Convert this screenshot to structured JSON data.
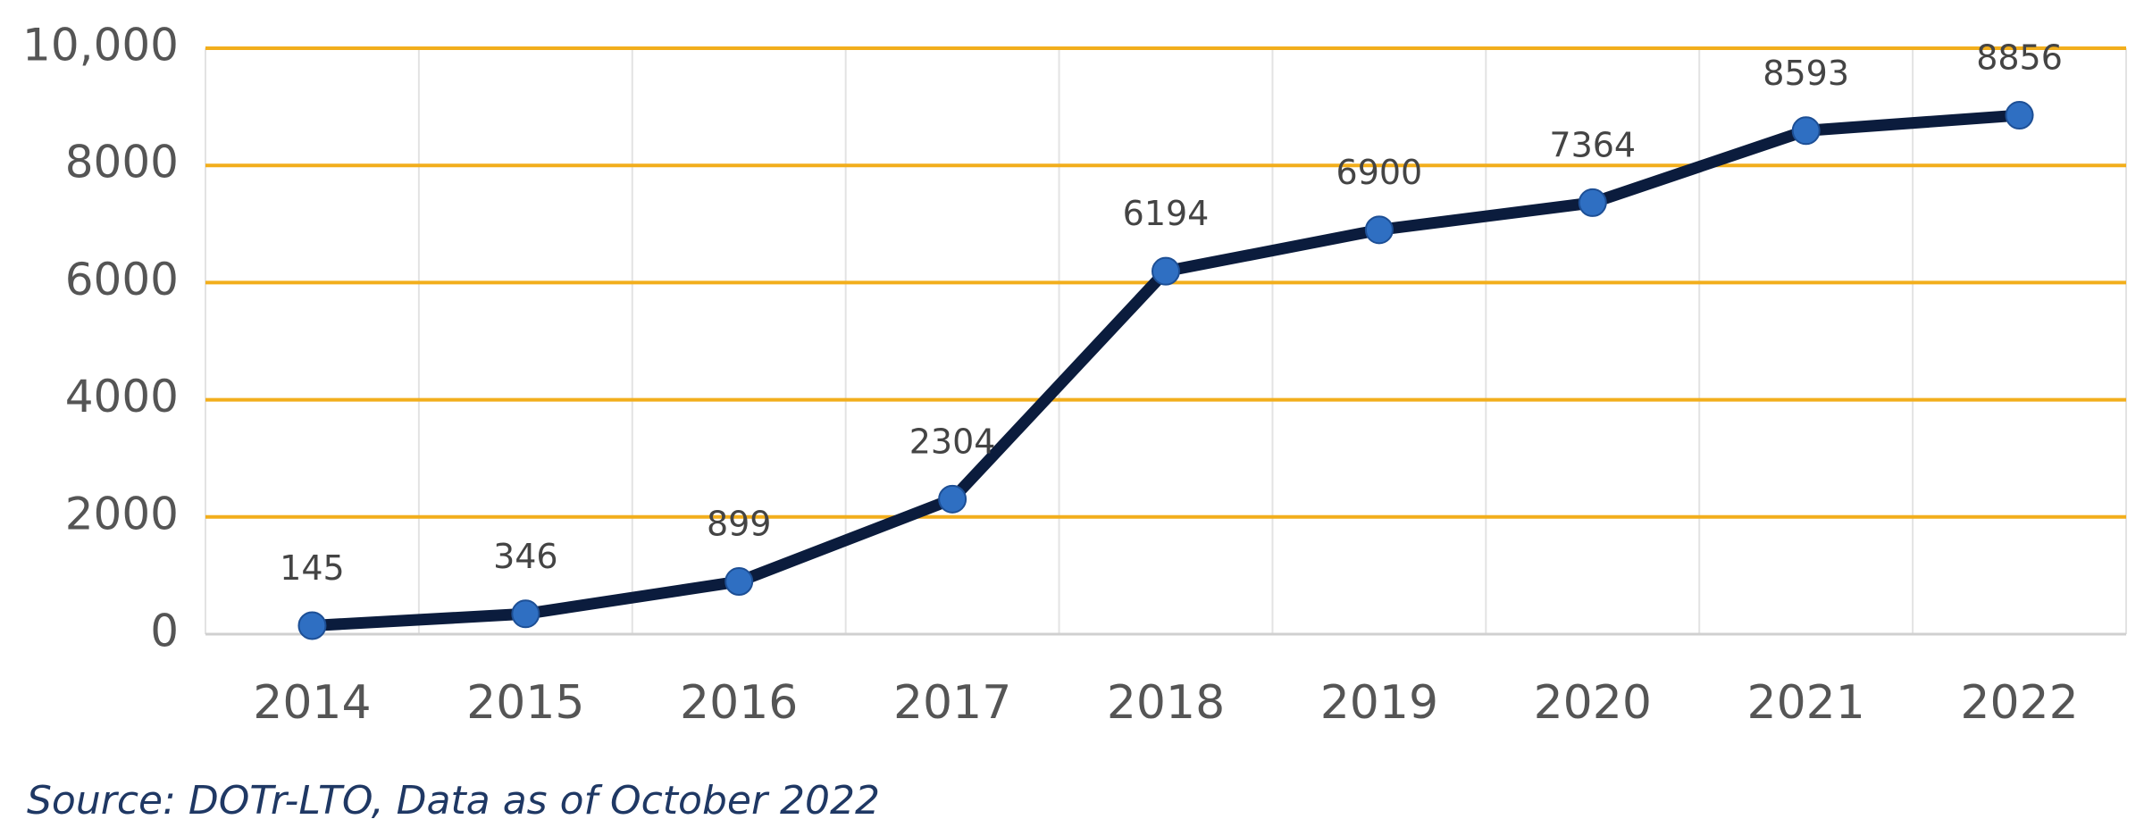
{
  "chart_data": {
    "type": "line",
    "categories": [
      "2014",
      "2015",
      "2016",
      "2017",
      "2018",
      "2019",
      "2020",
      "2021",
      "2022"
    ],
    "series": [
      {
        "color": "#0b1c3d",
        "values": [
          145,
          346,
          899,
          2304,
          6194,
          6900,
          7364,
          8593,
          8856
        ]
      }
    ],
    "marker_color": "#2f6fc2",
    "ylim": [
      0,
      10000
    ],
    "yticks": [
      0,
      2000,
      4000,
      6000,
      8000,
      {
        "value": 10000,
        "label": "10,000"
      }
    ],
    "grid": true,
    "grid_color": "#f2ae1c",
    "source": "Source: DOTr-LTO, Data as of October 2022"
  }
}
